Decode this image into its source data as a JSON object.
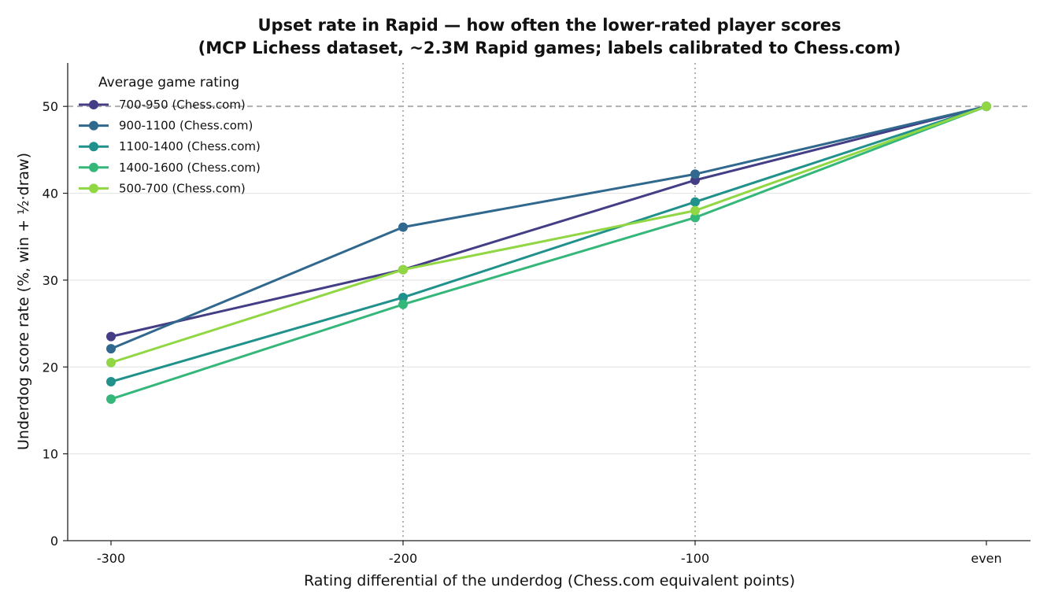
{
  "chart_data": {
    "type": "line",
    "title_line1": "Upset rate in Rapid — how often the lower-rated player scores",
    "title_line2": "(MCP Lichess dataset, ~2.3M Rapid games; labels calibrated to Chess.com)",
    "xlabel": "Rating differential of the underdog (Chess.com equivalent points)",
    "ylabel": "Underdog score rate (%, win + ½·draw)",
    "categories": [
      "-300",
      "-200",
      "-100",
      "even"
    ],
    "ylim": [
      0,
      55
    ],
    "yticks": [
      0,
      10,
      20,
      30,
      40,
      50
    ],
    "reference_line_y": 50,
    "vertical_gridlines_at": [
      "-200",
      "-100"
    ],
    "horizontal_grid": true,
    "legend": {
      "title": "Average game rating",
      "placement": "top-left"
    },
    "series": [
      {
        "name": "700-950 (Chess.com)",
        "color": "#433e85",
        "values": [
          23.5,
          31.2,
          41.5,
          50.0
        ]
      },
      {
        "name": "900-1100 (Chess.com)",
        "color": "#31688e",
        "values": [
          22.1,
          36.1,
          42.2,
          50.0
        ]
      },
      {
        "name": "1100-1400 (Chess.com)",
        "color": "#21918c",
        "values": [
          18.3,
          28.0,
          39.0,
          50.0
        ]
      },
      {
        "name": "1400-1600 (Chess.com)",
        "color": "#35b779",
        "values": [
          16.3,
          27.2,
          37.2,
          50.0
        ]
      },
      {
        "name": "500-700 (Chess.com)",
        "color": "#90d743",
        "values": [
          20.5,
          31.2,
          38.0,
          50.0
        ]
      }
    ]
  }
}
